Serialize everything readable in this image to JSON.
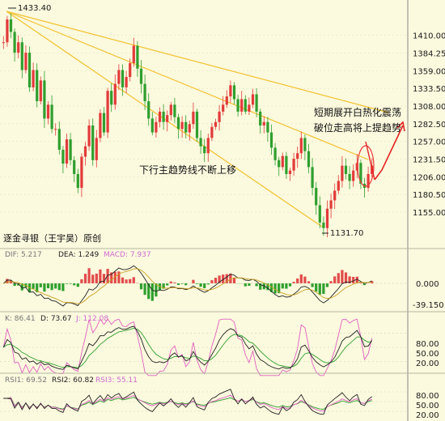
{
  "chart_data": {
    "type": "candlestick",
    "watermark": "逐金寻银（王宇昊）原创",
    "main": {
      "y_ticks": [
        "1410.00",
        "1384.25",
        "1359.00",
        "1333.50",
        "1308.00",
        "1282.50",
        "1257.00",
        "1231.50",
        "1206.00",
        "1180.50",
        "1155.00"
      ],
      "ylim": [
        1120,
        1440
      ],
      "high_label": "1433.40",
      "low_label": "1131.70",
      "annotation_trend": "下行主趋势线不断上移",
      "annotation_forecast_line1": "短期展开白热化震荡",
      "annotation_forecast_line2": "破位走高将上提趋势",
      "colors": {
        "up": "#e23b3b",
        "down": "#2f9f2f",
        "trendline": "#f2c230",
        "forecast_arrow": "#e22222"
      },
      "close_path": [
        1400,
        1433,
        1415,
        1385,
        1400,
        1360,
        1385,
        1335,
        1360,
        1315,
        1345,
        1290,
        1310,
        1275,
        1275,
        1245,
        1225,
        1260,
        1230,
        1210,
        1190,
        1235,
        1250,
        1280,
        1230,
        1262,
        1298,
        1270,
        1330,
        1310,
        1340,
        1360,
        1335,
        1350,
        1370,
        1395,
        1362,
        1340,
        1315,
        1290,
        1270,
        1285,
        1300,
        1285,
        1295,
        1310,
        1292,
        1275,
        1285,
        1270,
        1282,
        1300,
        1262,
        1250,
        1240,
        1262,
        1278,
        1285,
        1300,
        1310,
        1322,
        1338,
        1318,
        1300,
        1318,
        1300,
        1310,
        1325,
        1300,
        1280,
        1285,
        1270,
        1248,
        1230,
        1220,
        1236,
        1210,
        1215,
        1232,
        1240,
        1262,
        1243,
        1220,
        1190,
        1165,
        1140,
        1132,
        1160,
        1172,
        1186,
        1200,
        1222,
        1210,
        1200,
        1215,
        1226,
        1196,
        1190,
        1210,
        1222
      ],
      "xlabels": []
    },
    "macd": {
      "dif_label": "DIF: 5.217",
      "dea_label": "DEA: 1.249",
      "macd_label": "MACD: 7.937",
      "y_ticks": [
        "0.000",
        "-39.150"
      ],
      "dif_color": "#222222",
      "dea_color": "#c8a020",
      "bar_up": "#e24a4a",
      "bar_down": "#2fa02f"
    },
    "kdj": {
      "k_label": "K: 86.41",
      "d_label": "D: 73.67",
      "j_label": "J: 112.08",
      "y_ticks": [
        "80.00",
        "50.00",
        "20.00"
      ],
      "k_color": "#222222",
      "d_color": "#2f9f2f",
      "j_color": "#e060c0"
    },
    "rsi": {
      "rsi1_label": "RSI1: 69.52",
      "rsi2_label": "RSI2: 60.82",
      "rsi3_label": "RSI3: 55.11",
      "y_ticks": [
        "80.00",
        "50.00",
        "20.00"
      ],
      "rsi1_color": "#222222",
      "rsi2_color": "#e060c0",
      "rsi3_color": "#2f9f2f"
    }
  }
}
